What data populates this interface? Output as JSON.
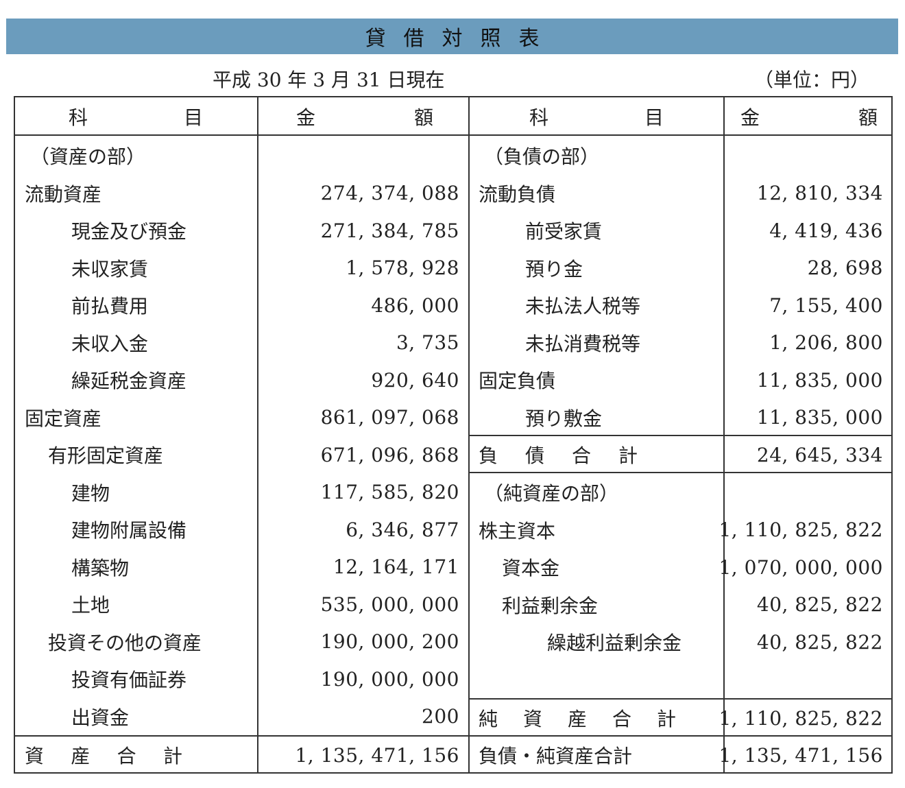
{
  "title": "貸借対照表",
  "date": "平成 30 年 3 月 31 日現在",
  "unit": "（単位：円）",
  "header": {
    "subject_a": "科",
    "subject_b": "目",
    "amount_a": "金",
    "amount_b": "額"
  },
  "assets": [
    {
      "label": "（資産の部）",
      "amount": ""
    },
    {
      "label": "流動資産",
      "amount": "274, 374, 088"
    },
    {
      "label": "現金及び預金",
      "amount": "271, 384, 785"
    },
    {
      "label": "未収家賃",
      "amount": "1, 578, 928"
    },
    {
      "label": "前払費用",
      "amount": "486, 000"
    },
    {
      "label": "未収入金",
      "amount": "3, 735"
    },
    {
      "label": "繰延税金資産",
      "amount": "920, 640"
    },
    {
      "label": "固定資産",
      "amount": "861, 097, 068"
    },
    {
      "label": "有形固定資産",
      "amount": "671, 096, 868"
    },
    {
      "label": "建物",
      "amount": "117, 585, 820"
    },
    {
      "label": "建物附属設備",
      "amount": "6, 346, 877"
    },
    {
      "label": "構築物",
      "amount": "12, 164, 171"
    },
    {
      "label": "土地",
      "amount": "535, 000, 000"
    },
    {
      "label": "投資その他の資産",
      "amount": "190, 000, 200"
    },
    {
      "label": "投資有価証券",
      "amount": "190, 000, 000"
    },
    {
      "label": "出資金",
      "amount": "200"
    }
  ],
  "assets_total": {
    "label": [
      "資",
      "産",
      "合",
      "計"
    ],
    "amount": "1, 135, 471, 156"
  },
  "liabilities": [
    {
      "label": "（負債の部）",
      "amount": ""
    },
    {
      "label": "流動負債",
      "amount": "12, 810, 334"
    },
    {
      "label": "前受家賃",
      "amount": "4, 419, 436"
    },
    {
      "label": "預り金",
      "amount": "28, 698"
    },
    {
      "label": "未払法人税等",
      "amount": "7, 155, 400"
    },
    {
      "label": "未払消費税等",
      "amount": "1, 206, 800"
    },
    {
      "label": "固定負債",
      "amount": "11, 835, 000"
    },
    {
      "label": "預り敷金",
      "amount": "11, 835, 000"
    }
  ],
  "liabilities_total": {
    "label": [
      "負",
      "債",
      "合",
      "計"
    ],
    "amount": "24, 645, 334"
  },
  "net_assets": [
    {
      "label": "（純資産の部）",
      "amount": ""
    },
    {
      "label": "株主資本",
      "amount": "1, 110, 825, 822"
    },
    {
      "label": "資本金",
      "amount": "1, 070, 000, 000"
    },
    {
      "label": "利益剰余金",
      "amount": "40, 825, 822"
    },
    {
      "label": "繰越利益剰余金",
      "amount": "40, 825, 822"
    }
  ],
  "net_assets_total": {
    "label": [
      "純",
      "資",
      "産",
      "合",
      "計"
    ],
    "amount": "1, 110, 825, 822"
  },
  "grand_total": {
    "label": "負債・純資産合計",
    "amount": "1, 135, 471, 156"
  }
}
